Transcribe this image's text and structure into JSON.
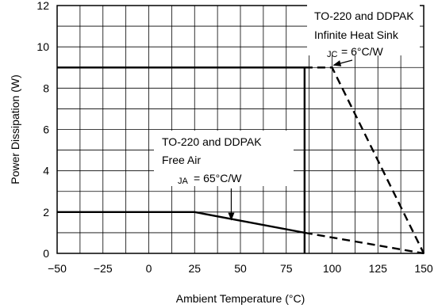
{
  "chart_data": {
    "type": "line",
    "xlabel": "Ambient Temperature (°C)",
    "ylabel": "Power Dissipation (W)",
    "xlim": [
      -50,
      150
    ],
    "ylim": [
      0,
      12
    ],
    "x_ticks": [
      -50,
      -25,
      0,
      25,
      50,
      75,
      100,
      125,
      150
    ],
    "y_ticks": [
      0,
      2,
      4,
      6,
      8,
      10,
      12
    ],
    "x_tick_labels": [
      "−50",
      "−25",
      "0",
      "25",
      "50",
      "75",
      "100",
      "125",
      "150"
    ],
    "y_tick_labels": [
      "0",
      "2",
      "4",
      "6",
      "8",
      "10",
      "12"
    ],
    "grid": true,
    "series": [
      {
        "line_style": "solid",
        "points": [
          [
            -50,
            2
          ],
          [
            25,
            2
          ],
          [
            85,
            1
          ]
        ]
      },
      {
        "line_style": "dashed",
        "points": [
          [
            85,
            1
          ],
          [
            150,
            0
          ]
        ]
      },
      {
        "line_style": "solid",
        "points": [
          [
            -50,
            9
          ],
          [
            85,
            9
          ],
          [
            85,
            0
          ]
        ]
      },
      {
        "line_style": "dashed",
        "points": [
          [
            85,
            9
          ],
          [
            100,
            9
          ],
          [
            150,
            0
          ]
        ]
      }
    ],
    "annotations": [
      {
        "lines": [
          "TO-220 and DDPAK",
          "Infinite Heat Sink"
        ],
        "sub": "JC",
        "value": "= 6°C/W",
        "arrow_to": [
          100,
          9
        ]
      },
      {
        "lines": [
          "TO-220 and DDPAK",
          "Free Air"
        ],
        "sub": "JA",
        "value": "= 65°C/W",
        "arrow_to": [
          45,
          1.7
        ]
      }
    ]
  }
}
